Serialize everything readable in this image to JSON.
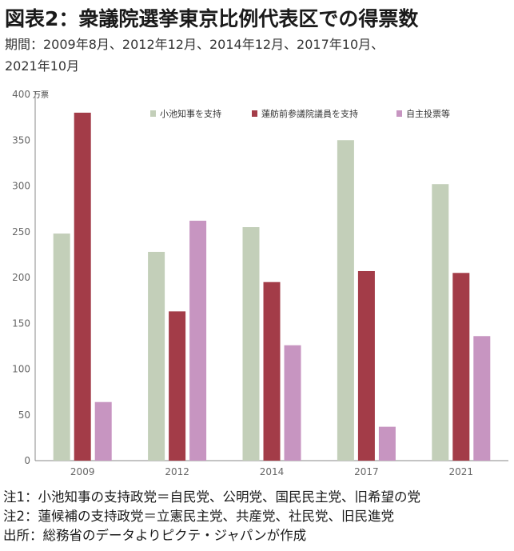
{
  "header": {
    "title": "図表2：衆議院選挙東京比例代表区での得票数",
    "subtitle_line1": "期間：2009年8月、2012年12月、2014年12月、2017年10月、",
    "subtitle_line2": "2021年10月"
  },
  "notes": {
    "note1": "注1：小池知事の支持政党＝自民党、公明党、国民民主党、旧希望の党",
    "note2": "注2：蓮候補の支持政党＝立憲民主党、共産党、社民党、旧民進党",
    "source": "出所：総務省のデータよりピクテ・ジャパンが作成"
  },
  "chart_data": {
    "type": "bar",
    "categories": [
      "2009",
      "2012",
      "2014",
      "2017",
      "2021"
    ],
    "series": [
      {
        "name": "小池知事を支持",
        "color": "#c3cfb9",
        "values": [
          248,
          228,
          255,
          350,
          302
        ]
      },
      {
        "name": "蓮舫前参議院議員を支持",
        "color": "#a33c48",
        "values": [
          380,
          163,
          195,
          207,
          205
        ]
      },
      {
        "name": "自主投票等",
        "color": "#c795c1",
        "values": [
          64,
          262,
          126,
          37,
          136
        ]
      }
    ],
    "ylim": [
      0,
      400
    ],
    "yticks": [
      0,
      50,
      100,
      150,
      200,
      250,
      300,
      350,
      400
    ],
    "yunit": "万票",
    "legend_position": "top",
    "grid": false
  }
}
